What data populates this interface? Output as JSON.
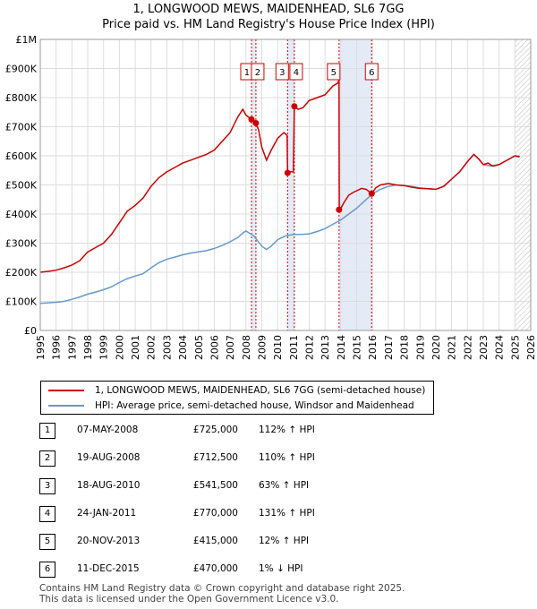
{
  "chart_data": {
    "type": "line",
    "title": "1, LONGWOOD MEWS, MAIDENHEAD, SL6 7GG",
    "subtitle": "Price paid vs. HM Land Registry's House Price Index (HPI)",
    "ylim": [
      0,
      1000000
    ],
    "xlim": [
      1995,
      2026
    ],
    "y_ticks": [
      0,
      100000,
      200000,
      300000,
      400000,
      500000,
      600000,
      700000,
      800000,
      900000,
      1000000
    ],
    "y_tick_labels": [
      "£0",
      "£100K",
      "£200K",
      "£300K",
      "£400K",
      "£500K",
      "£600K",
      "£700K",
      "£800K",
      "£900K",
      "£1M"
    ],
    "x_ticks": [
      1995,
      1996,
      1997,
      1998,
      1999,
      2000,
      2001,
      2002,
      2003,
      2004,
      2005,
      2006,
      2007,
      2008,
      2009,
      2010,
      2011,
      2012,
      2013,
      2014,
      2015,
      2016,
      2017,
      2018,
      2019,
      2020,
      2021,
      2022,
      2023,
      2024,
      2025,
      2026
    ],
    "grid": true,
    "future_hatch_start": 2025.0,
    "series": [
      {
        "name": "1, LONGWOOD MEWS, MAIDENHEAD, SL6 7GG (semi-detached house)",
        "color": "#cc0000",
        "x": [
          1995.0,
          1995.5,
          1996.0,
          1996.5,
          1997.0,
          1997.5,
          1998.0,
          1998.5,
          1999.0,
          1999.5,
          2000.0,
          2000.5,
          2001.0,
          2001.5,
          2002.0,
          2002.5,
          2003.0,
          2003.5,
          2004.0,
          2004.5,
          2005.0,
          2005.5,
          2006.0,
          2006.5,
          2007.0,
          2007.5,
          2007.8,
          2008.0,
          2008.35,
          2008.5,
          2008.63,
          2008.8,
          2009.0,
          2009.3,
          2009.6,
          2010.0,
          2010.4,
          2010.6,
          2010.63,
          2010.8,
          2011.0,
          2011.06,
          2011.3,
          2011.6,
          2012.0,
          2012.5,
          2013.0,
          2013.5,
          2013.8,
          2013.885,
          2013.9,
          2014.0,
          2014.2,
          2014.5,
          2014.8,
          2015.0,
          2015.3,
          2015.6,
          2015.945,
          2016.2,
          2016.5,
          2017.0,
          2017.5,
          2018.0,
          2018.5,
          2019.0,
          2019.5,
          2020.0,
          2020.5,
          2021.0,
          2021.5,
          2022.0,
          2022.4,
          2022.7,
          2023.0,
          2023.3,
          2023.6,
          2024.0,
          2024.5,
          2025.0,
          2025.3
        ],
        "y": [
          200000,
          203000,
          207000,
          215000,
          225000,
          240000,
          270000,
          285000,
          300000,
          330000,
          370000,
          410000,
          430000,
          455000,
          495000,
          525000,
          545000,
          560000,
          575000,
          585000,
          595000,
          605000,
          620000,
          650000,
          680000,
          735000,
          760000,
          740000,
          725000,
          722000,
          712500,
          690000,
          630000,
          585000,
          620000,
          660000,
          680000,
          670000,
          541500,
          545000,
          545000,
          770000,
          760000,
          765000,
          790000,
          800000,
          810000,
          840000,
          850000,
          860000,
          415000,
          420000,
          440000,
          465000,
          475000,
          480000,
          488000,
          485000,
          470000,
          490000,
          500000,
          505000,
          500000,
          498000,
          492000,
          488000,
          487000,
          485000,
          495000,
          520000,
          545000,
          580000,
          605000,
          590000,
          570000,
          575000,
          565000,
          570000,
          585000,
          600000,
          598000
        ]
      },
      {
        "name": "HPI: Average price, semi-detached house, Windsor and Maidenhead",
        "color": "#6699cc",
        "x": [
          1995.0,
          1995.5,
          1996.0,
          1996.5,
          1997.0,
          1997.5,
          1998.0,
          1998.5,
          1999.0,
          1999.5,
          2000.0,
          2000.5,
          2001.0,
          2001.5,
          2002.0,
          2002.5,
          2003.0,
          2003.5,
          2004.0,
          2004.5,
          2005.0,
          2005.5,
          2006.0,
          2006.5,
          2007.0,
          2007.5,
          2007.8,
          2008.0,
          2008.5,
          2009.0,
          2009.3,
          2009.6,
          2010.0,
          2010.5,
          2011.0,
          2011.5,
          2012.0,
          2012.5,
          2013.0,
          2013.5,
          2014.0,
          2014.5,
          2015.0,
          2015.5,
          2016.0,
          2016.5,
          2017.0,
          2017.5,
          2018.0,
          2018.5,
          2019.0,
          2019.5,
          2020.0,
          2020.5,
          2021.0,
          2021.5,
          2022.0,
          2022.4,
          2022.7,
          2023.0,
          2023.5,
          2024.0,
          2024.5,
          2025.0,
          2025.3
        ],
        "y": [
          93000,
          95000,
          97000,
          100000,
          107000,
          115000,
          125000,
          132000,
          140000,
          150000,
          165000,
          178000,
          187000,
          195000,
          215000,
          233000,
          245000,
          252000,
          260000,
          266000,
          270000,
          274000,
          282000,
          292000,
          305000,
          320000,
          335000,
          342000,
          325000,
          290000,
          278000,
          290000,
          312000,
          325000,
          330000,
          330000,
          332000,
          340000,
          350000,
          365000,
          380000,
          400000,
          420000,
          445000,
          470000,
          485000,
          495000,
          500000,
          498000,
          495000,
          490000,
          487000,
          485000,
          495000,
          520000,
          545000,
          580000,
          605000,
          590000,
          570000,
          565000,
          570000,
          585000,
          600000,
          595000
        ]
      }
    ],
    "markers": [
      {
        "label": "1",
        "x": 2008.35,
        "y": 725000
      },
      {
        "label": "2",
        "x": 2008.63,
        "y": 712500
      },
      {
        "label": "3",
        "x": 2010.63,
        "y": 541500
      },
      {
        "label": "4",
        "x": 2011.06,
        "y": 770000
      },
      {
        "label": "5",
        "x": 2013.885,
        "y": 415000
      },
      {
        "label": "6",
        "x": 2015.945,
        "y": 470000
      }
    ],
    "shaded_bands": [
      [
        2008.35,
        2008.63
      ],
      [
        2010.63,
        2011.06
      ],
      [
        2013.885,
        2015.945
      ]
    ]
  },
  "legend": {
    "items": [
      {
        "label": "1, LONGWOOD MEWS, MAIDENHEAD, SL6 7GG (semi-detached house)",
        "color": "#cc0000"
      },
      {
        "label": "HPI: Average price, semi-detached house, Windsor and Maidenhead",
        "color": "#6699cc"
      }
    ]
  },
  "sales": [
    {
      "num": "1",
      "date": "07-MAY-2008",
      "price": "£725,000",
      "hpi": "112% ↑ HPI"
    },
    {
      "num": "2",
      "date": "19-AUG-2008",
      "price": "£712,500",
      "hpi": "110% ↑ HPI"
    },
    {
      "num": "3",
      "date": "18-AUG-2010",
      "price": "£541,500",
      "hpi": "63% ↑ HPI"
    },
    {
      "num": "4",
      "date": "24-JAN-2011",
      "price": "£770,000",
      "hpi": "131% ↑ HPI"
    },
    {
      "num": "5",
      "date": "20-NOV-2013",
      "price": "£415,000",
      "hpi": "12% ↑ HPI"
    },
    {
      "num": "6",
      "date": "11-DEC-2015",
      "price": "£470,000",
      "hpi": "1% ↓ HPI"
    }
  ],
  "footer": {
    "line1": "Contains HM Land Registry data © Crown copyright and database right 2025.",
    "line2": "This data is licensed under the Open Government Licence v3.0."
  }
}
